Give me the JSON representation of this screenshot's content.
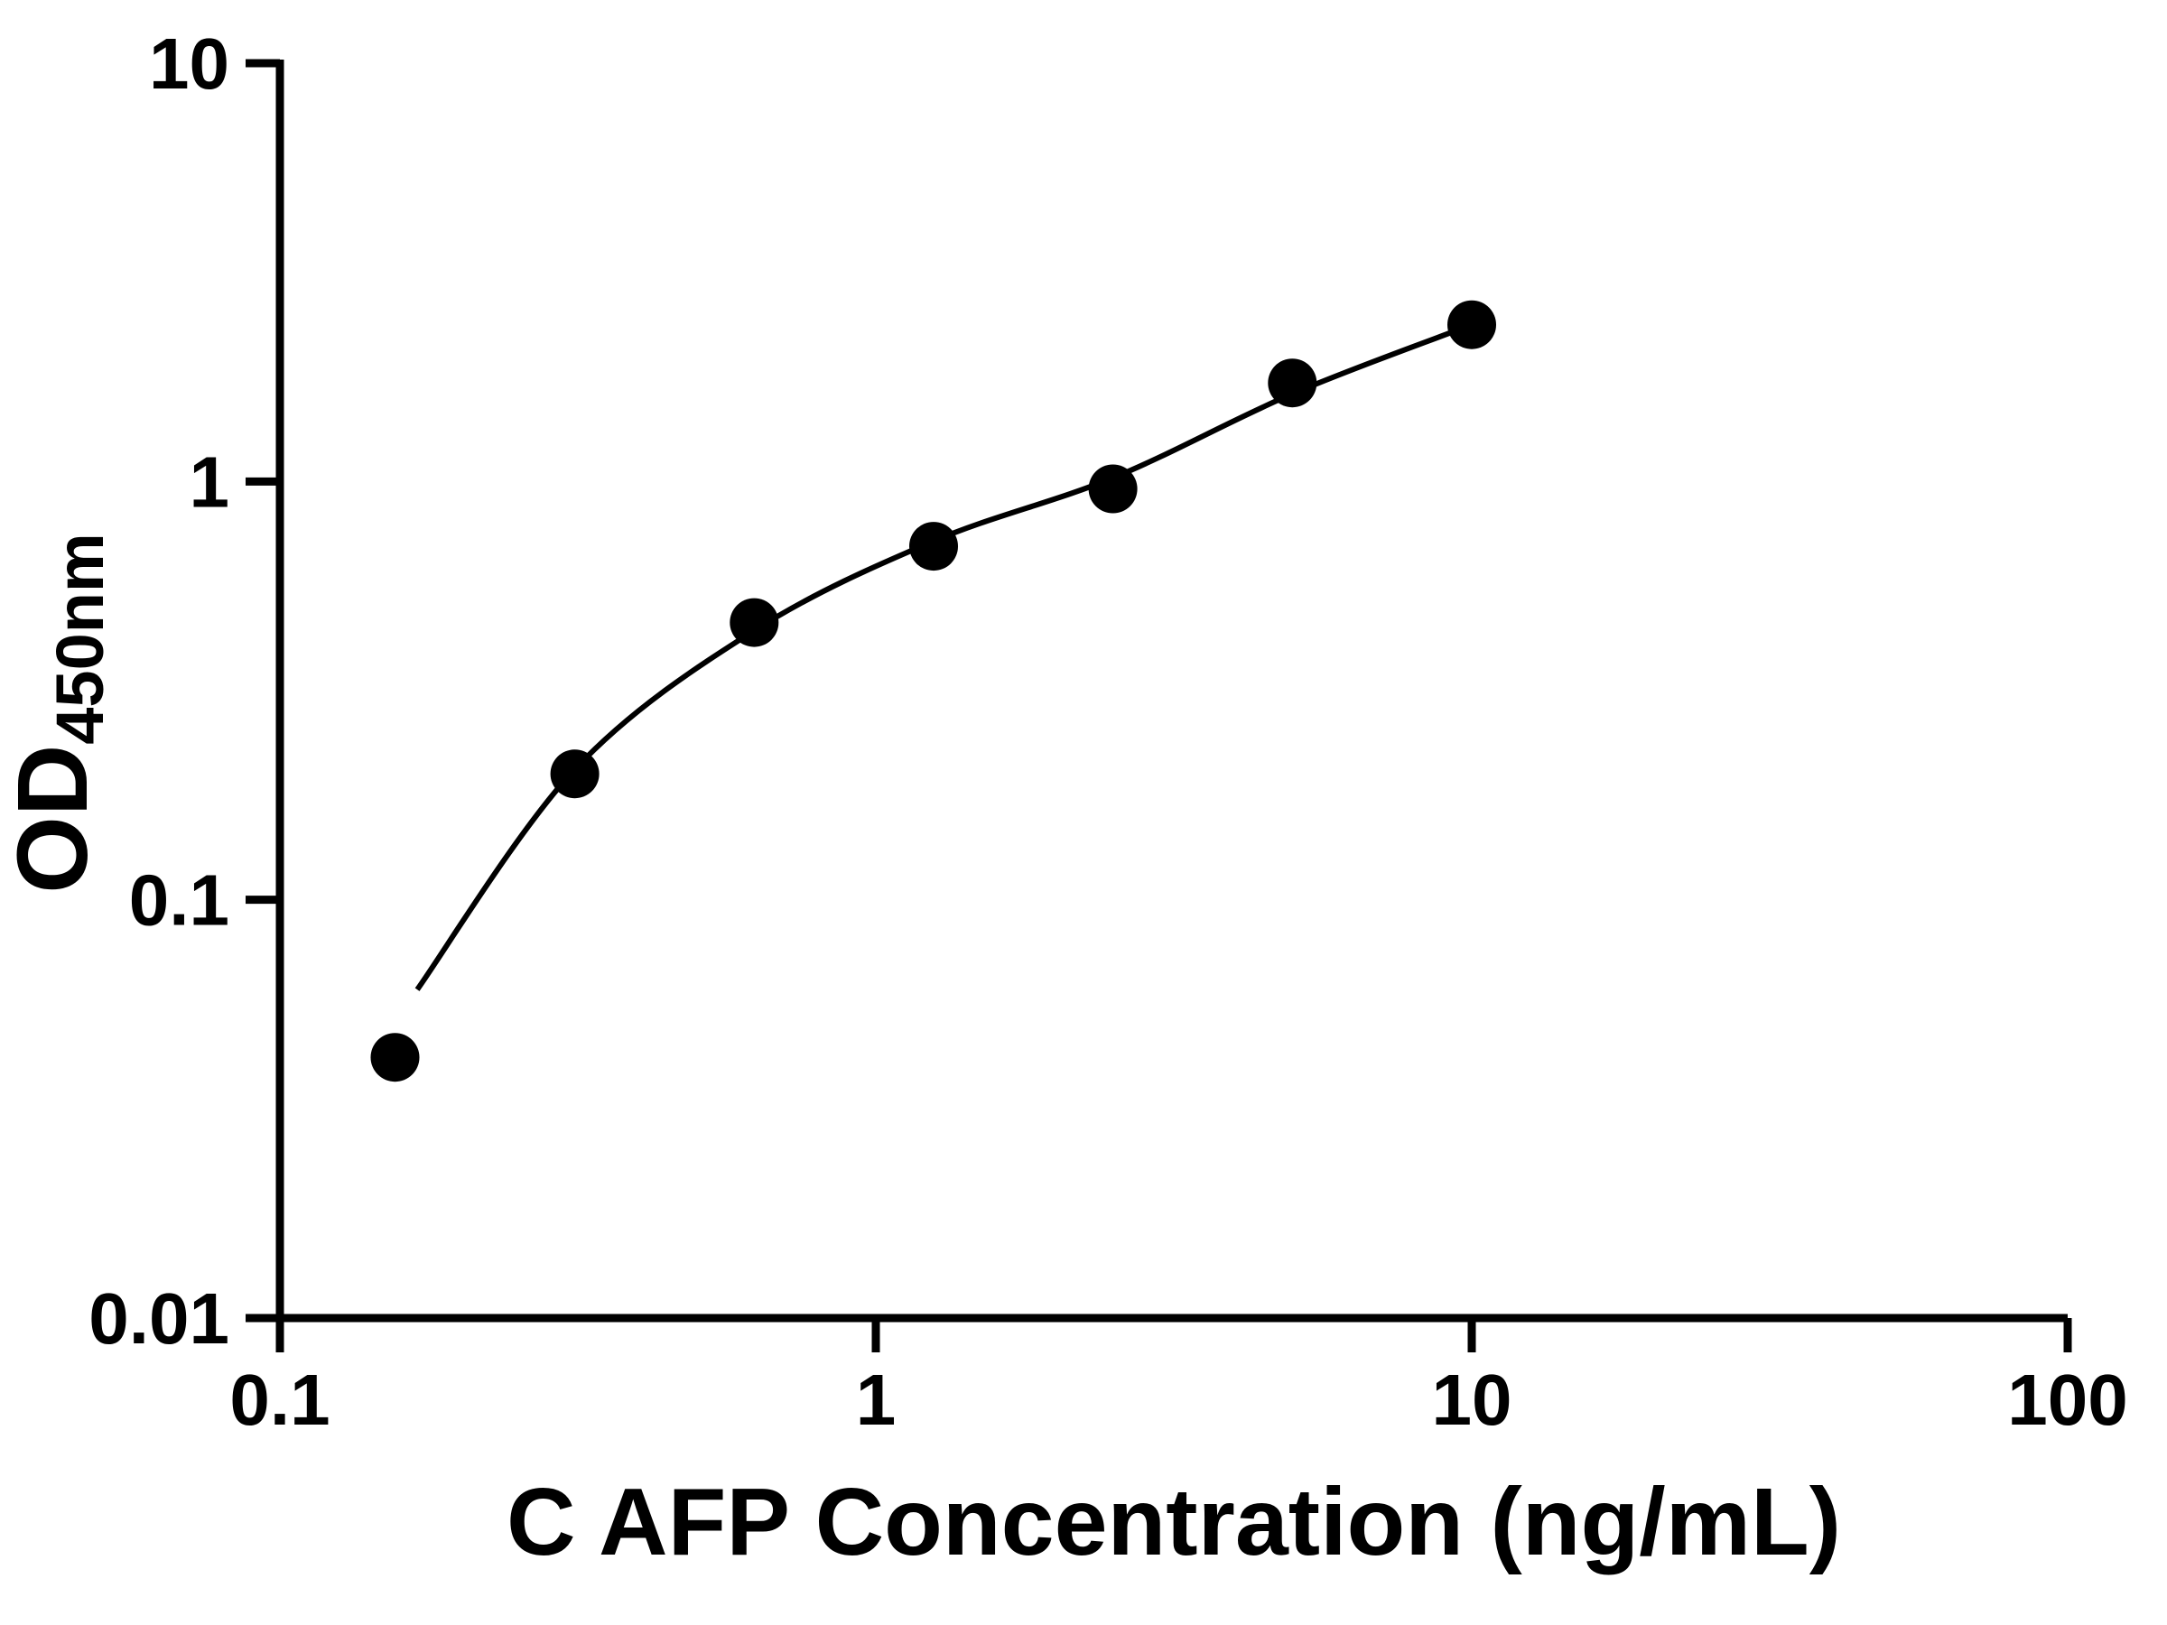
{
  "figure": {
    "background_color": "#ffffff",
    "axis_color": "#000000",
    "marker_color": "#000000",
    "curve_color": "#000000"
  },
  "chart_data": {
    "type": "scatter",
    "title": "",
    "xlabel": "C AFP Concentration (ng/mL)",
    "ylabel_main": "OD",
    "ylabel_sub": "450nm",
    "x_scale": "log",
    "y_scale": "log",
    "xlim": [
      0.1,
      100
    ],
    "ylim": [
      0.01,
      10
    ],
    "grid": false,
    "legend": false,
    "x_ticks": [
      0.1,
      1,
      10,
      100
    ],
    "x_tick_labels": [
      "0.1",
      "1",
      "10",
      "100"
    ],
    "y_ticks": [
      0.01,
      0.1,
      1,
      10
    ],
    "y_tick_labels": [
      "0.01",
      "0.1",
      "1",
      "10"
    ],
    "series": [
      {
        "name": "standard-points",
        "type": "scatter",
        "marker": "circle",
        "color": "#000000",
        "points": [
          {
            "x": 0.156,
            "y": 0.042
          },
          {
            "x": 0.3125,
            "y": 0.2
          },
          {
            "x": 0.625,
            "y": 0.46
          },
          {
            "x": 1.25,
            "y": 0.7
          },
          {
            "x": 2.5,
            "y": 0.96
          },
          {
            "x": 5,
            "y": 1.72
          },
          {
            "x": 10,
            "y": 2.37
          }
        ]
      },
      {
        "name": "fit-curve",
        "type": "line",
        "color": "#000000",
        "points": [
          {
            "x": 0.17,
            "y": 0.061
          },
          {
            "x": 0.3125,
            "y": 0.205
          },
          {
            "x": 0.625,
            "y": 0.44
          },
          {
            "x": 1.25,
            "y": 0.72
          },
          {
            "x": 2.5,
            "y": 1.02
          },
          {
            "x": 5,
            "y": 1.62
          },
          {
            "x": 10,
            "y": 2.37
          }
        ]
      }
    ]
  }
}
